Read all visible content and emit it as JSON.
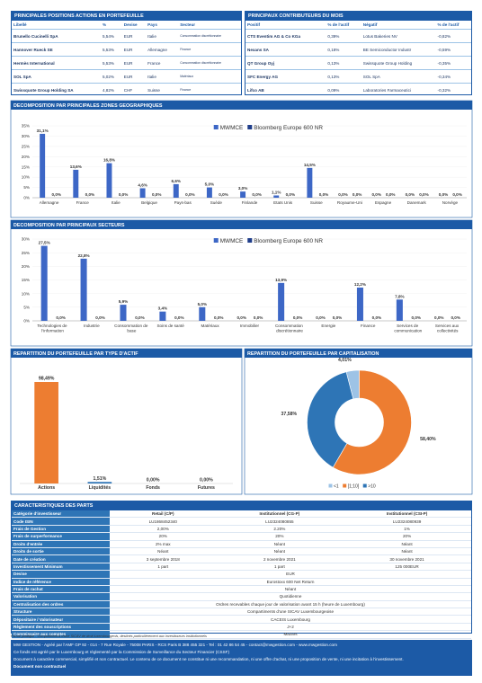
{
  "positions": {
    "title": "PRINCIPALES POSITIONS ACTIONS EN PORTEFEUILLE",
    "columns": [
      "Libellé",
      "%",
      "Devise",
      "Pays",
      "Secteur"
    ],
    "rows": [
      [
        "Brunello Cucinelli SpA",
        "5,54%",
        "EUR",
        "Italie",
        "Consommation discrétionnaire"
      ],
      [
        "Hannover Rueck SE",
        "5,53%",
        "EUR",
        "Allemagne",
        "Finance"
      ],
      [
        "Hermès International",
        "5,53%",
        "EUR",
        "France",
        "Consommation discrétionnaire"
      ],
      [
        "SOL SpA",
        "5,02%",
        "EUR",
        "Italie",
        "Matériaux"
      ],
      [
        "Swissquote Group Holding SA",
        "4,82%",
        "CHF",
        "Suisse",
        "Finance"
      ]
    ]
  },
  "contributors": {
    "title": "PRINCIPAUX CONTRIBUTEURS DU MOIS",
    "columns": [
      "Positif",
      "% de l'actif",
      "Négatif",
      "% de l'actif"
    ],
    "rows": [
      [
        "CTS Eventim AG & Co KGa",
        "0,39%",
        "Lotus Bakeries NV",
        "-0,82%"
      ],
      [
        "Nexans SA",
        "0,18%",
        "BE Semiconductor Industr",
        "-0,59%"
      ],
      [
        "QT Group Oyj",
        "0,13%",
        "Swissquote Group Holding",
        "-0,35%"
      ],
      [
        "SFC Energy AG",
        "0,13%",
        "SOL SpA",
        "-0,34%"
      ],
      [
        "Lifco AB",
        "0,09%",
        "Laboratories Farmaceutici",
        "-0,32%"
      ]
    ]
  },
  "chart_data": [
    {
      "type": "bar",
      "title": "DECOMPOSITION PAR PRINCIPALES ZONES GEOGRAPHIQUES",
      "categories": [
        "Allemagne",
        "France",
        "Italie",
        "Belgique",
        "Pays-bas",
        "Suède",
        "Finlande",
        "Etats Unis",
        "Suisse",
        "Royaume-Uni",
        "Espagne",
        "Danemark",
        "Norvège"
      ],
      "series": [
        {
          "name": "MWMCE",
          "color": "#3d67c6",
          "values": [
            31.1,
            13.6,
            16.8,
            4.6,
            6.6,
            5.0,
            3.0,
            1.1,
            14.5,
            0.0,
            0.0,
            0.0,
            0.0
          ],
          "value_labels": [
            "31,1%",
            "13,6%",
            "16,8%",
            "4,6%",
            "6,6%",
            "5,0%",
            "3,0%",
            "1,1%",
            "14,5%",
            "0,0%",
            "0,0%",
            "0,0%",
            "0,0%"
          ]
        },
        {
          "name": "Bloomberg Europe 600 NR",
          "color": "#1f3d8a",
          "values": [
            0.0,
            0.0,
            0.0,
            0.0,
            0.0,
            0.0,
            0.0,
            0.0,
            0.0,
            0.0,
            0.0,
            0.0,
            0.0
          ],
          "value_labels": [
            "0,0%",
            "0,0%",
            "0,0%",
            "0,0%",
            "0,0%",
            "0,0%",
            "0,0%",
            "0,0%",
            "0,0%",
            "0,0%",
            "0,0%",
            "0,0%",
            "0,0%"
          ]
        }
      ],
      "ylim": [
        0,
        35
      ],
      "yticks": [
        {
          "value": 0,
          "label": "0%"
        },
        {
          "value": 5,
          "label": "5%"
        },
        {
          "value": 10,
          "label": "10%"
        },
        {
          "value": 15,
          "label": "15%"
        },
        {
          "value": 20,
          "label": "20%"
        },
        {
          "value": 25,
          "label": "25%"
        },
        {
          "value": 30,
          "label": "30%"
        },
        {
          "value": 35,
          "label": "35%"
        }
      ],
      "grid": true,
      "legend": "top"
    },
    {
      "type": "bar",
      "title": "DECOMPOSITION PAR PRINCIPAUX SECTEURS",
      "categories": [
        "Technologies de l'information",
        "Industrie",
        "Consommation de base",
        "Soins de santé",
        "Matériaux",
        "Immobilier",
        "Consommation discrétionnaire",
        "Energie",
        "Finance",
        "Services de communication",
        "Services aux collectivités"
      ],
      "series": [
        {
          "name": "MWMCE",
          "color": "#3d67c6",
          "values": [
            27.5,
            22.8,
            5.9,
            3.4,
            5.0,
            0.0,
            13.9,
            0.0,
            12.2,
            7.8,
            0.0
          ],
          "value_labels": [
            "27,5%",
            "22,8%",
            "5,9%",
            "3,4%",
            "5,0%",
            "0,0%",
            "13,9%",
            "0,0%",
            "12,2%",
            "7,8%",
            "0,0%"
          ]
        },
        {
          "name": "Bloomberg Europe 600 NR",
          "color": "#1f3d8a",
          "values": [
            0.0,
            0.0,
            0.0,
            0.0,
            0.0,
            0.0,
            0.0,
            0.0,
            0.0,
            0.0,
            0.0
          ],
          "value_labels": [
            "0,0%",
            "0,0%",
            "0,0%",
            "0,0%",
            "0,0%",
            "0,0%",
            "0,0%",
            "0,0%",
            "0,0%",
            "0,0%",
            "0,0%"
          ]
        }
      ],
      "ylim": [
        0,
        30
      ],
      "yticks": [
        {
          "value": 0,
          "label": "0%"
        },
        {
          "value": 5,
          "label": "5%"
        },
        {
          "value": 10,
          "label": "10%"
        },
        {
          "value": 15,
          "label": "15%"
        },
        {
          "value": 20,
          "label": "20%"
        },
        {
          "value": 25,
          "label": "25%"
        },
        {
          "value": 30,
          "label": "30%"
        }
      ],
      "grid": true,
      "legend": "top"
    },
    {
      "type": "bar",
      "title": "REPARTITION DU PORTEFEUILLE PAR TYPE D'ACTIF",
      "categories": [
        "Actions",
        "Liquidités",
        "Fonds",
        "Futures"
      ],
      "values": [
        98.49,
        1.51,
        0.0,
        0.0
      ],
      "value_labels": [
        "98,49%",
        "1,51%",
        "0,00%",
        "0,00%"
      ],
      "colors": [
        "#ed7d31",
        "#2e75b6",
        "#a5a5a5",
        "#ffc000"
      ]
    },
    {
      "type": "pie",
      "title": "REPARTITION DU PORTEFEUILLE PAR CAPITALISATION",
      "categories": [
        "<1",
        "[1;10]",
        ">10"
      ],
      "values": [
        4.01,
        58.4,
        37.58
      ],
      "value_labels": [
        "4,01%",
        "58,40%",
        "37,58%"
      ],
      "colors": [
        "#9dc3e6",
        "#ed7d31",
        "#2e75b6"
      ],
      "legend": "bottom"
    }
  ],
  "characteristics": {
    "title": "CARACTERISTIQUES DES PARTS",
    "rows": [
      [
        "Catégorie d'investisseur",
        "Retail (C/P)",
        "Institutionnel (CG-P)",
        "Institutionnel (CSI-P)"
      ],
      [
        "Code ISIN",
        "LU1868452340",
        "LU2324080855",
        "LU2324080939"
      ],
      [
        "Frais de Gestion",
        "2,00%",
        "2.20%",
        "1%"
      ],
      [
        "Frais de surperformance",
        "20%",
        "20%",
        "20%"
      ],
      [
        "Droits d'entrée",
        "2% max",
        "Néant",
        "Néant"
      ],
      [
        "Droits de sortie",
        "Néant",
        "Néant",
        "Néant"
      ],
      [
        "Date de création",
        "3 septembre 2018",
        "2 novembre 2021",
        "30 novembre 2021"
      ],
      [
        "Investissement Minimum",
        "1 part",
        "1 part",
        "125 000EUR"
      ],
      [
        "Devise",
        "EUR"
      ],
      [
        "Indice de référence",
        "Eurostoxx 600 Net Return"
      ],
      [
        "Frais de rachat",
        "Néant"
      ],
      [
        "Valorisation",
        "Quotidienne"
      ],
      [
        "Centralisation des ordres",
        "Ordres recevables chaque jour de valorisation avant 15 h (heure de Luxembourg)"
      ],
      [
        "Structure",
        "Compartiments d'une SICAV Luxembourgeoise"
      ],
      [
        "Dépositaire / Valorisateur",
        "CACEIS Luxembourg"
      ],
      [
        "Règlement des souscriptions",
        "J+2"
      ],
      [
        "Commissaire aux comptes",
        "Mazars"
      ]
    ]
  },
  "footer": {
    "legal_form": "Forme juridique : Compartiments d'une SICAV de droit luxembourgeois, destinés particulièrement aux investisseurs institutionnels",
    "lines": [
      "MW GESTION - Agréé par l'AMF GP 92 - 014 - 7 Rue Royale - 75008 PARIS - RCS Paris B 388 455 321 - Tel : 01 42 86 54 45 - contact@mwgestion.com - www.mwgestion.com",
      "Ce fonds est agréé par le Luxembourg et réglementé par la Commission de Surveillance du Secteur Financier (CSSF)",
      "Document à caractère commercial, simplifié et non contractuel. Le contenu de ce document ne constitue ni une recommandation, ni une offre d'achat, ni une proposition de vente, ni une incitation à l'investissement."
    ],
    "notice": "Document non contractuel"
  }
}
